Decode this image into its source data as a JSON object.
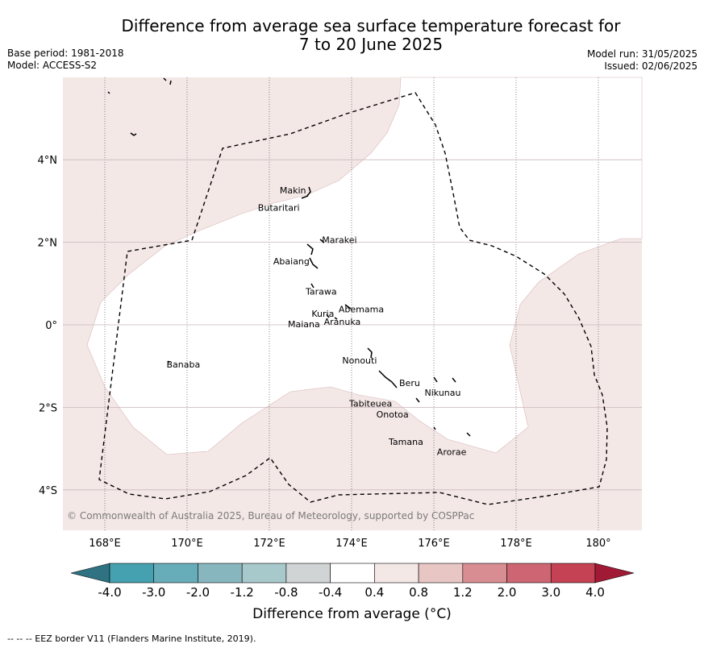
{
  "title_line1": "Difference from average sea surface temperature forecast for",
  "title_line2": "7 to 20 June 2025",
  "base_period": "Base period: 1981-2018",
  "model": "Model: ACCESS-S2",
  "model_run": "Model run: 31/05/2025",
  "issued": "Issued: 02/06/2025",
  "copyright": "© Commonwealth of Australia 2025, Bureau of Meteorology, supported by COSPPac",
  "footnote": "--  --  -- EEZ border V11 (Flanders Marine Institute, 2019).",
  "map": {
    "lon_range": [
      167,
      181
    ],
    "lat_range": [
      -5,
      5.9
    ],
    "lon_ticks": [
      {
        "lon": 168,
        "label": "168°E"
      },
      {
        "lon": 170,
        "label": "170°E"
      },
      {
        "lon": 172,
        "label": "172°E"
      },
      {
        "lon": 174,
        "label": "174°E"
      },
      {
        "lon": 176,
        "label": "176°E"
      },
      {
        "lon": 178,
        "label": "178°E"
      },
      {
        "lon": 180,
        "label": "180°"
      }
    ],
    "lat_ticks": [
      {
        "lat": 4,
        "label": "4°N"
      },
      {
        "lat": 2,
        "label": "2°N"
      },
      {
        "lat": 0,
        "label": "0°"
      },
      {
        "lat": -2,
        "label": "2°S"
      },
      {
        "lat": -4,
        "label": "4°S"
      }
    ],
    "background_anomaly_band": "0.4 to 0.8",
    "places": [
      {
        "name": "Makin",
        "lon": 172.9,
        "lat": 3.2
      },
      {
        "name": "Butaritari",
        "lon": 172.8,
        "lat": 3.0
      },
      {
        "name": "Marakei",
        "lon": 173.3,
        "lat": 2.0
      },
      {
        "name": "Abaiang",
        "lon": 172.9,
        "lat": 1.8
      },
      {
        "name": "Tarawa",
        "lon": 173.0,
        "lat": 1.4
      },
      {
        "name": "Maiana",
        "lon": 173.0,
        "lat": 0.9
      },
      {
        "name": "Abemama",
        "lon": 173.9,
        "lat": 0.4
      },
      {
        "name": "Kuria",
        "lon": 173.4,
        "lat": 0.2
      },
      {
        "name": "Aranuka",
        "lon": 173.6,
        "lat": 0.2
      },
      {
        "name": "Banaba",
        "lon": 169.5,
        "lat": -0.9
      },
      {
        "name": "Nonouti",
        "lon": 174.4,
        "lat": -0.7
      },
      {
        "name": "Beru",
        "lon": 176.0,
        "lat": -1.35
      },
      {
        "name": "Nikunau",
        "lon": 176.5,
        "lat": -1.35
      },
      {
        "name": "Tabiteuea",
        "lon": 175.0,
        "lat": -1.4
      },
      {
        "name": "Onotoa",
        "lon": 175.6,
        "lat": -1.8
      },
      {
        "name": "Tamana",
        "lon": 176.0,
        "lat": -2.5
      },
      {
        "name": "Arorae",
        "lon": 176.8,
        "lat": -2.65
      }
    ]
  },
  "colorbar": {
    "label": "Difference from average (",
    "unit": "°C)",
    "ticks": [
      "-4.0",
      "-3.0",
      "-2.0",
      "-1.2",
      "-0.8",
      "-0.4",
      "0.4",
      "0.8",
      "1.2",
      "2.0",
      "3.0",
      "4.0"
    ],
    "colors": {
      "below_min": "#2f7281",
      "bins": [
        "#45a0af",
        "#67adb9",
        "#88b6bf",
        "#a8c9cc",
        "#d0d4d4",
        "#ffffff",
        "#f4e8e7",
        "#e8c6c3",
        "#d88d93",
        "#cd6672",
        "#c44253"
      ],
      "above_max": "#a11a35"
    }
  }
}
